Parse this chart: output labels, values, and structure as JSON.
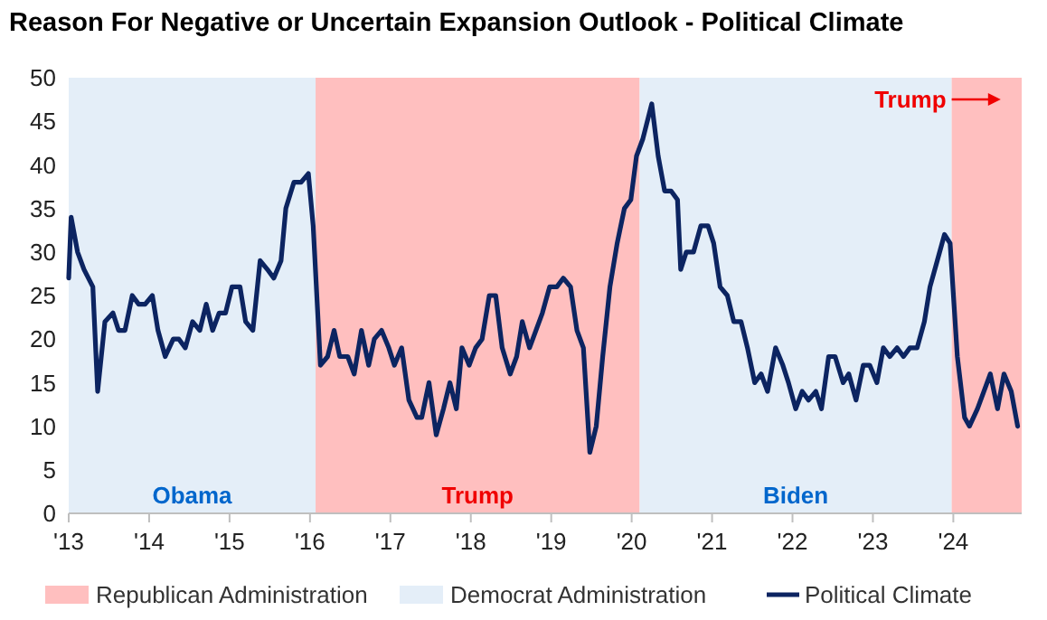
{
  "chart_data": {
    "type": "line",
    "title": "Reason For Negative or Uncertain Expansion Outlook - Political Climate",
    "x": [
      2013.0,
      2013.03,
      2013.11,
      2013.19,
      2013.3,
      2013.36,
      2013.45,
      2013.55,
      2013.62,
      2013.7,
      2013.79,
      2013.87,
      2013.95,
      2014.04,
      2014.11,
      2014.2,
      2014.3,
      2014.37,
      2014.45,
      2014.54,
      2014.63,
      2014.71,
      2014.79,
      2014.87,
      2014.95,
      2015.03,
      2015.13,
      2015.2,
      2015.29,
      2015.38,
      2015.47,
      2015.55,
      2015.64,
      2015.7,
      2015.8,
      2015.89,
      2015.98,
      2016.04,
      2016.13,
      2016.22,
      2016.3,
      2016.37,
      2016.47,
      2016.55,
      2016.64,
      2016.73,
      2016.8,
      2016.89,
      2016.98,
      2017.05,
      2017.14,
      2017.23,
      2017.33,
      2017.39,
      2017.48,
      2017.57,
      2017.66,
      2017.74,
      2017.82,
      2017.89,
      2017.98,
      2018.06,
      2018.14,
      2018.23,
      2018.31,
      2018.39,
      2018.49,
      2018.57,
      2018.64,
      2018.73,
      2018.81,
      2018.89,
      2018.98,
      2019.07,
      2019.15,
      2019.24,
      2019.32,
      2019.4,
      2019.48,
      2019.56,
      2019.64,
      2019.73,
      2019.82,
      2019.91,
      2019.99,
      2020.06,
      2020.14,
      2020.25,
      2020.33,
      2020.41,
      2020.49,
      2020.57,
      2020.61,
      2020.68,
      2020.77,
      2020.86,
      2020.95,
      2021.02,
      2021.1,
      2021.19,
      2021.27,
      2021.36,
      2021.44,
      2021.53,
      2021.61,
      2021.69,
      2021.79,
      2021.88,
      2021.95,
      2022.04,
      2022.12,
      2022.2,
      2022.29,
      2022.36,
      2022.45,
      2022.53,
      2022.63,
      2022.7,
      2022.79,
      2022.88,
      2022.96,
      2023.05,
      2023.13,
      2023.21,
      2023.3,
      2023.38,
      2023.46,
      2023.55,
      2023.64,
      2023.71,
      2023.8,
      2023.89,
      2023.96,
      2024.05,
      2024.14,
      2024.2,
      2024.3,
      2024.38,
      2024.46,
      2024.55,
      2024.63,
      2024.72,
      2024.8
    ],
    "series": [
      {
        "name": "Political Climate",
        "color": "#0c2461",
        "values": [
          27,
          34,
          30,
          28,
          26,
          14,
          22,
          23,
          21,
          21,
          25,
          24,
          24,
          25,
          21,
          18,
          20,
          20,
          19,
          22,
          21,
          24,
          21,
          23,
          23,
          26,
          26,
          22,
          21,
          29,
          28,
          27,
          29,
          35,
          38,
          38,
          39,
          33,
          17,
          18,
          21,
          18,
          18,
          16,
          21,
          17,
          20,
          21,
          19,
          17,
          19,
          13,
          11,
          11,
          15,
          9,
          12,
          15,
          12,
          19,
          17,
          19,
          20,
          25,
          25,
          19,
          16,
          18,
          22,
          19,
          21,
          23,
          26,
          26,
          27,
          26,
          21,
          19,
          7,
          10,
          18,
          26,
          31,
          35,
          36,
          41,
          43,
          47,
          41,
          37,
          37,
          36,
          28,
          30,
          30,
          33,
          33,
          31,
          26,
          25,
          22,
          22,
          19,
          15,
          16,
          14,
          19,
          17,
          15,
          12,
          14,
          13,
          14,
          12,
          18,
          18,
          15,
          16,
          13,
          17,
          17,
          15,
          19,
          18,
          19,
          18,
          19,
          19,
          22,
          26,
          29,
          32,
          31,
          18,
          11,
          10,
          12,
          14,
          16,
          12,
          16,
          14,
          10
        ]
      }
    ],
    "xlim": [
      2013,
      2024.85
    ],
    "xticks": [
      {
        "value": 2013,
        "label": "'13"
      },
      {
        "value": 2014,
        "label": "'14"
      },
      {
        "value": 2015,
        "label": "'15"
      },
      {
        "value": 2016,
        "label": "'16"
      },
      {
        "value": 2017,
        "label": "'17"
      },
      {
        "value": 2018,
        "label": "'18"
      },
      {
        "value": 2019,
        "label": "'19"
      },
      {
        "value": 2020,
        "label": "'20"
      },
      {
        "value": 2021,
        "label": "'21"
      },
      {
        "value": 2022,
        "label": "'22"
      },
      {
        "value": 2023,
        "label": "'23"
      },
      {
        "value": 2024,
        "label": "'24"
      }
    ],
    "ylim": [
      0,
      50
    ],
    "yticks": [
      0,
      5,
      10,
      15,
      20,
      25,
      30,
      35,
      40,
      45,
      50
    ],
    "bands": [
      {
        "axis": "x",
        "from": 2013,
        "to": 2016.07,
        "label": "Democrat Administration",
        "color": "#e4eef8"
      },
      {
        "axis": "x",
        "from": 2016.07,
        "to": 2020.1,
        "label": "Republican Administration",
        "color": "#ffbfbf"
      },
      {
        "axis": "x",
        "from": 2020.1,
        "to": 2023.98,
        "color": "#e4eef8"
      },
      {
        "axis": "x",
        "from": 2023.98,
        "to": 2024.85,
        "color": "#ffbfbf"
      }
    ],
    "annotations": [
      "Obama",
      "Trump",
      "Biden",
      "Trump"
    ],
    "legend": "bottom",
    "grid": false,
    "marker": "none",
    "line_style": "solid"
  }
}
